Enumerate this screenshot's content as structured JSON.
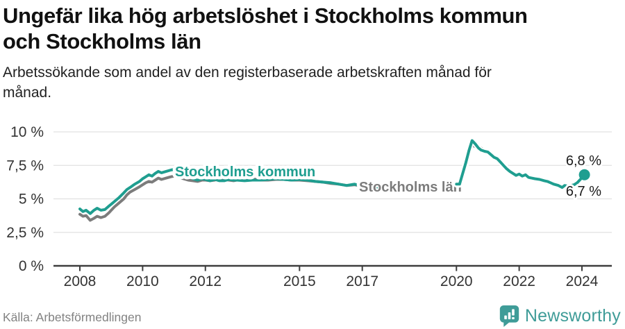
{
  "header": {
    "title": "Ungefär lika hög arbetslöshet i Stockholms kommun och Stockholms län",
    "title_line1": "Ungefär lika hög arbetslöshet i Stockholms kommun",
    "title_line2": "och Stockholms län",
    "subtitle_line1": "Arbetssökande som andel av den registerbaserade arbetskraften månad för",
    "subtitle_line2": "månad."
  },
  "chart_data": {
    "type": "line",
    "title": "Ungefär lika hög arbetslöshet i Stockholms kommun och Stockholms län",
    "subtitle": "Arbetssökande som andel av den registerbaserade arbetskraften månad för månad.",
    "xlabel": "",
    "ylabel": "",
    "x_unit": "year (monthly data)",
    "y_unit": "percent of registered labour force",
    "ylim": [
      0,
      10.5
    ],
    "xlim": [
      2007.1,
      2025.0
    ],
    "grid": "horizontal",
    "legend_position": "inline-labels",
    "y_ticks": [
      {
        "value": 10,
        "label": "10 %"
      },
      {
        "value": 7.5,
        "label": "7,5 %"
      },
      {
        "value": 5,
        "label": "5 %"
      },
      {
        "value": 2.5,
        "label": "2,5 %"
      },
      {
        "value": 0,
        "label": "0 %"
      }
    ],
    "x_ticks": [
      {
        "value": 2008,
        "label": "2008"
      },
      {
        "value": 2010,
        "label": "2010"
      },
      {
        "value": 2012,
        "label": "2012"
      },
      {
        "value": 2015,
        "label": "2015"
      },
      {
        "value": 2017,
        "label": "2017"
      },
      {
        "value": 2020,
        "label": "2020"
      },
      {
        "value": 2022,
        "label": "2022"
      },
      {
        "value": 2024,
        "label": "2024"
      }
    ],
    "x": [
      2008.0,
      2008.1,
      2008.2,
      2008.33,
      2008.45,
      2008.55,
      2008.67,
      2008.8,
      2008.92,
      2009.0,
      2009.1,
      2009.25,
      2009.4,
      2009.5,
      2009.6,
      2009.75,
      2009.9,
      2010.0,
      2010.1,
      2010.2,
      2010.3,
      2010.4,
      2010.5,
      2010.6,
      2010.75,
      2010.9,
      2011.0,
      2011.15,
      2011.3,
      2011.45,
      2011.6,
      2011.75,
      2011.9,
      2012.0,
      2012.15,
      2012.3,
      2012.45,
      2012.6,
      2012.75,
      2012.9,
      2013.0,
      2013.25,
      2013.5,
      2013.75,
      2014.0,
      2014.25,
      2014.5,
      2014.75,
      2015.0,
      2015.25,
      2015.5,
      2015.75,
      2016.0,
      2016.25,
      2016.5,
      2016.75,
      2017.0,
      2017.25,
      2017.5,
      2017.75,
      2018.0,
      2018.25,
      2018.5,
      2018.75,
      2019.0,
      2019.25,
      2019.5,
      2019.75,
      2019.9,
      2020.0,
      2020.1,
      2020.2,
      2020.3,
      2020.4,
      2020.5,
      2020.6,
      2020.7,
      2020.78,
      2020.9,
      2021.0,
      2021.1,
      2021.2,
      2021.3,
      2021.4,
      2021.5,
      2021.6,
      2021.7,
      2021.8,
      2021.9,
      2022.0,
      2022.1,
      2022.2,
      2022.3,
      2022.4,
      2022.5,
      2022.65,
      2022.8,
      2022.9,
      2023.0,
      2023.1,
      2023.25,
      2023.37,
      2023.45,
      2023.55,
      2023.65,
      2023.75,
      2023.85,
      2023.95,
      2024.0,
      2024.08
    ],
    "series": [
      {
        "name": "Stockholms kommun",
        "color": "#1f9e90",
        "end_label": "6,8 %",
        "last_value": 6.8,
        "values": [
          4.25,
          4.05,
          4.15,
          3.9,
          4.15,
          4.3,
          4.15,
          4.2,
          4.45,
          4.6,
          4.8,
          5.1,
          5.45,
          5.7,
          5.85,
          6.1,
          6.3,
          6.5,
          6.65,
          6.8,
          6.7,
          6.9,
          7.05,
          6.95,
          7.05,
          7.15,
          7.2,
          7.05,
          6.9,
          6.7,
          6.5,
          6.4,
          6.5,
          6.45,
          6.35,
          6.45,
          6.35,
          6.35,
          6.45,
          6.4,
          6.4,
          6.35,
          6.4,
          6.4,
          6.45,
          6.5,
          6.45,
          6.4,
          6.45,
          6.4,
          6.3,
          6.25,
          6.2,
          6.1,
          6.0,
          6.1,
          5.95,
          5.9,
          5.85,
          5.8,
          5.75,
          5.7,
          5.7,
          5.75,
          5.8,
          5.85,
          5.95,
          6.0,
          6.05,
          6.1,
          6.1,
          6.9,
          7.7,
          8.6,
          9.35,
          9.1,
          8.8,
          8.65,
          8.55,
          8.5,
          8.3,
          8.1,
          8.0,
          7.75,
          7.5,
          7.25,
          7.05,
          6.9,
          6.75,
          6.85,
          6.7,
          6.8,
          6.6,
          6.55,
          6.5,
          6.45,
          6.35,
          6.3,
          6.2,
          6.1,
          6.0,
          5.85,
          6.0,
          5.95,
          6.0,
          6.05,
          6.2,
          6.45,
          6.6,
          6.8
        ]
      },
      {
        "name": "Stockholms län",
        "color": "#7c7c7c",
        "end_label": "6,7 %",
        "last_value": 6.7,
        "values": [
          3.85,
          3.7,
          3.75,
          3.4,
          3.55,
          3.7,
          3.6,
          3.7,
          3.95,
          4.15,
          4.4,
          4.7,
          5.0,
          5.3,
          5.5,
          5.7,
          5.9,
          6.05,
          6.2,
          6.3,
          6.25,
          6.4,
          6.55,
          6.45,
          6.55,
          6.65,
          6.7,
          6.6,
          6.5,
          6.4,
          6.35,
          6.3,
          6.4,
          6.4,
          6.35,
          6.4,
          6.5,
          6.45,
          6.4,
          6.35,
          6.4,
          6.45,
          6.5,
          6.4,
          6.4,
          6.45,
          6.45,
          6.4,
          6.4,
          6.35,
          6.3,
          6.25,
          6.15,
          6.1,
          6.0,
          6.05,
          5.95,
          5.9,
          5.85,
          5.8,
          5.75,
          5.7,
          5.65,
          5.7,
          5.75,
          5.8,
          5.9,
          5.95,
          6.0,
          6.05,
          6.05,
          6.7,
          7.5,
          8.4,
          9.0,
          8.9,
          8.75,
          8.8,
          8.6,
          8.55,
          8.35,
          8.1,
          8.0,
          7.75,
          7.55,
          7.3,
          7.1,
          6.95,
          6.8,
          6.9,
          6.7,
          6.75,
          6.6,
          6.55,
          6.5,
          6.45,
          6.35,
          6.3,
          6.2,
          6.1,
          6.0,
          5.85,
          5.95,
          5.9,
          5.95,
          6.0,
          6.15,
          6.4,
          6.55,
          6.7
        ]
      }
    ]
  },
  "footer": {
    "source": "Källa: Arbetsförmedlingen",
    "brand": "Newsworthy"
  },
  "colors": {
    "accent_teal": "#1f9e90",
    "series_gray": "#7c7c7c",
    "gridline": "#e0e0e0",
    "axis": "#3d3d3d",
    "brand_teal": "#3f9c98"
  }
}
